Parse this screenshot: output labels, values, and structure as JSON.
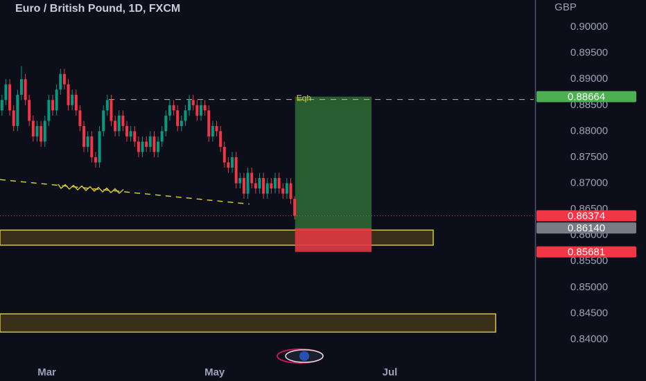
{
  "chart_data": {
    "type": "candlestick",
    "title": "Euro / British Pound, 1D, FXCM",
    "currency": "GBP",
    "up_color": "#089981",
    "down_color": "#f23645",
    "xlim": [
      -0.5,
      136.6
    ],
    "ylim": [
      0.83573,
      0.90521
    ],
    "xticks": [
      {
        "value": 11.5,
        "label": "Mar"
      },
      {
        "value": 54.5,
        "label": "May"
      },
      {
        "value": 99.4,
        "label": "Jul"
      }
    ],
    "yticks": [
      {
        "value": 0.9,
        "label": "0.90000"
      },
      {
        "value": 0.895,
        "label": "0.89500"
      },
      {
        "value": 0.89,
        "label": "0.89000"
      },
      {
        "value": 0.885,
        "label": "0.88500"
      },
      {
        "value": 0.88,
        "label": "0.88000"
      },
      {
        "value": 0.875,
        "label": "0.87500"
      },
      {
        "value": 0.87,
        "label": "0.87000"
      },
      {
        "value": 0.865,
        "label": "0.86500"
      },
      {
        "value": 0.86,
        "label": "0.86000"
      },
      {
        "value": 0.855,
        "label": "0.85500"
      },
      {
        "value": 0.85,
        "label": "0.85000"
      },
      {
        "value": 0.845,
        "label": "0.84500"
      },
      {
        "value": 0.84,
        "label": "0.84000"
      }
    ],
    "ohlc": [
      [
        0.884,
        0.887,
        0.883,
        0.886
      ],
      [
        0.886,
        0.89,
        0.885,
        0.889
      ],
      [
        0.889,
        0.89,
        0.883,
        0.884
      ],
      [
        0.884,
        0.885,
        0.88,
        0.881
      ],
      [
        0.881,
        0.888,
        0.88,
        0.887
      ],
      [
        0.887,
        0.8925,
        0.886,
        0.89
      ],
      [
        0.89,
        0.891,
        0.885,
        0.886
      ],
      [
        0.886,
        0.887,
        0.881,
        0.882
      ],
      [
        0.882,
        0.883,
        0.878,
        0.879
      ],
      [
        0.879,
        0.882,
        0.878,
        0.881
      ],
      [
        0.881,
        0.882,
        0.877,
        0.878
      ],
      [
        0.878,
        0.883,
        0.877,
        0.882
      ],
      [
        0.882,
        0.887,
        0.881,
        0.886
      ],
      [
        0.886,
        0.887,
        0.883,
        0.884
      ],
      [
        0.884,
        0.889,
        0.883,
        0.888
      ],
      [
        0.888,
        0.892,
        0.887,
        0.891
      ],
      [
        0.891,
        0.892,
        0.888,
        0.889
      ],
      [
        0.889,
        0.89,
        0.884,
        0.885
      ],
      [
        0.885,
        0.888,
        0.884,
        0.887
      ],
      [
        0.887,
        0.888,
        0.883,
        0.884
      ],
      [
        0.884,
        0.885,
        0.88,
        0.881
      ],
      [
        0.881,
        0.882,
        0.876,
        0.877
      ],
      [
        0.877,
        0.88,
        0.876,
        0.879
      ],
      [
        0.879,
        0.88,
        0.874,
        0.875
      ],
      [
        0.875,
        0.876,
        0.873,
        0.874
      ],
      [
        0.874,
        0.881,
        0.873,
        0.88
      ],
      [
        0.88,
        0.885,
        0.879,
        0.884
      ],
      [
        0.884,
        0.887,
        0.883,
        0.886
      ],
      [
        0.886,
        0.887,
        0.881,
        0.882
      ],
      [
        0.882,
        0.883,
        0.879,
        0.88
      ],
      [
        0.88,
        0.884,
        0.879,
        0.883
      ],
      [
        0.883,
        0.884,
        0.88,
        0.881
      ],
      [
        0.881,
        0.882,
        0.878,
        0.879
      ],
      [
        0.879,
        0.881,
        0.878,
        0.88
      ],
      [
        0.88,
        0.881,
        0.877,
        0.878
      ],
      [
        0.878,
        0.879,
        0.875,
        0.876
      ],
      [
        0.876,
        0.879,
        0.875,
        0.878
      ],
      [
        0.878,
        0.879,
        0.876,
        0.877
      ],
      [
        0.877,
        0.88,
        0.876,
        0.879
      ],
      [
        0.879,
        0.88,
        0.875,
        0.876
      ],
      [
        0.876,
        0.879,
        0.875,
        0.878
      ],
      [
        0.878,
        0.881,
        0.877,
        0.88
      ],
      [
        0.88,
        0.884,
        0.879,
        0.883
      ],
      [
        0.883,
        0.886,
        0.882,
        0.885
      ],
      [
        0.885,
        0.886,
        0.883,
        0.884
      ],
      [
        0.884,
        0.885,
        0.88,
        0.881
      ],
      [
        0.881,
        0.883,
        0.88,
        0.882
      ],
      [
        0.882,
        0.885,
        0.881,
        0.884
      ],
      [
        0.884,
        0.887,
        0.883,
        0.886
      ],
      [
        0.886,
        0.887,
        0.884,
        0.885
      ],
      [
        0.885,
        0.886,
        0.882,
        0.883
      ],
      [
        0.883,
        0.886,
        0.882,
        0.885
      ],
      [
        0.885,
        0.886,
        0.883,
        0.884
      ],
      [
        0.884,
        0.885,
        0.878,
        0.879
      ],
      [
        0.879,
        0.882,
        0.878,
        0.881
      ],
      [
        0.881,
        0.882,
        0.879,
        0.88
      ],
      [
        0.88,
        0.881,
        0.876,
        0.877
      ],
      [
        0.877,
        0.878,
        0.873,
        0.874
      ],
      [
        0.874,
        0.875,
        0.872,
        0.873
      ],
      [
        0.873,
        0.876,
        0.872,
        0.875
      ],
      [
        0.875,
        0.876,
        0.869,
        0.87
      ],
      [
        0.87,
        0.872,
        0.869,
        0.871
      ],
      [
        0.871,
        0.872,
        0.867,
        0.868
      ],
      [
        0.868,
        0.873,
        0.867,
        0.872
      ],
      [
        0.872,
        0.873,
        0.869,
        0.87
      ],
      [
        0.87,
        0.871,
        0.868,
        0.869
      ],
      [
        0.869,
        0.872,
        0.868,
        0.871
      ],
      [
        0.871,
        0.872,
        0.867,
        0.868
      ],
      [
        0.868,
        0.871,
        0.867,
        0.87
      ],
      [
        0.87,
        0.871,
        0.868,
        0.869
      ],
      [
        0.869,
        0.872,
        0.868,
        0.871
      ],
      [
        0.871,
        0.872,
        0.868,
        0.869
      ],
      [
        0.869,
        0.87,
        0.867,
        0.868
      ],
      [
        0.868,
        0.871,
        0.867,
        0.87
      ],
      [
        0.87,
        0.871,
        0.866,
        0.867
      ],
      [
        0.867,
        0.8675,
        0.863,
        0.86374
      ]
    ],
    "zones": [
      {
        "x": [
          -0.5,
          110.5
        ],
        "y": [
          0.8581,
          0.861
        ]
      },
      {
        "x": [
          -0.5,
          126.5
        ],
        "y": [
          0.8414,
          0.8449
        ]
      }
    ],
    "position": {
      "x": [
        75.1,
        94.7
      ],
      "entry": 0.8614,
      "target": 0.88664,
      "stop": 0.85681
    },
    "eqh": {
      "label": "Eqh",
      "x": 27.4,
      "y": 0.8861
    },
    "trendline": {
      "x": [
        -0.5,
        63.4
      ],
      "y": [
        0.8707,
        0.866
      ]
    },
    "price_labels": [
      {
        "value": 0.88664,
        "color": "#4caf50"
      },
      {
        "value": 0.86374,
        "color": "#f23645"
      },
      {
        "value": 0.8614,
        "label": "0.86140",
        "color": "#787b86"
      },
      {
        "value": 0.85681,
        "color": "#f23645"
      }
    ]
  }
}
